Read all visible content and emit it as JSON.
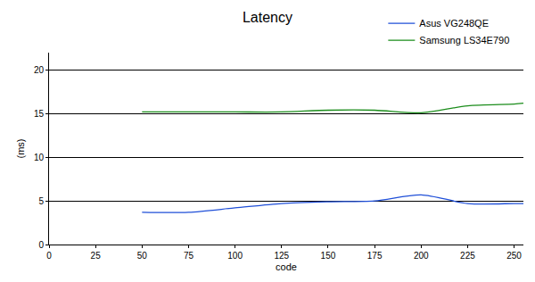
{
  "chart_data": {
    "type": "line",
    "title": "Latency",
    "x_label": "code",
    "y_label": "(ms)",
    "x": [
      50,
      75,
      100,
      125,
      150,
      175,
      200,
      225,
      250,
      255
    ],
    "series": [
      {
        "name": "Asus VG248QE",
        "color": "#1f4fd8",
        "values": [
          3.7,
          3.7,
          4.2,
          4.7,
          4.9,
          5.0,
          5.7,
          4.7,
          4.7,
          4.7
        ]
      },
      {
        "name": "Samsung LS34E790",
        "color": "#1a8c1a",
        "values": [
          15.2,
          15.2,
          15.2,
          15.2,
          15.4,
          15.4,
          15.1,
          15.9,
          16.1,
          16.2
        ]
      }
    ],
    "xlim": [
      0,
      255
    ],
    "xticks": [
      0,
      25,
      50,
      75,
      100,
      125,
      150,
      175,
      200,
      225,
      250
    ],
    "ylim": [
      0,
      22
    ],
    "yticks": [
      0,
      5,
      10,
      15,
      20
    ],
    "grid": true,
    "legend": "top right"
  }
}
